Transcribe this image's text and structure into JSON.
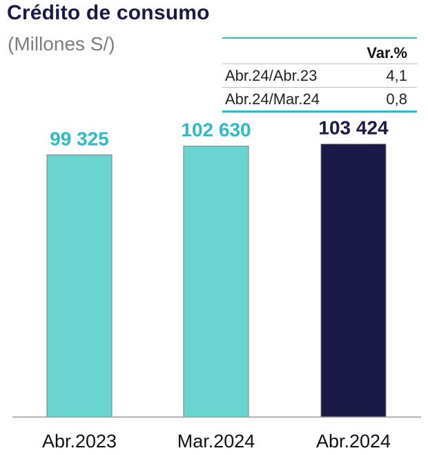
{
  "header": {
    "title": "Crédito de consumo",
    "subtitle": "(Millones S/)"
  },
  "variation_table": {
    "header": "Var.%",
    "rows": [
      {
        "label": "Abr.24/Abr.23",
        "value": "4,1"
      },
      {
        "label": "Abr.24/Mar.24",
        "value": "0,8"
      }
    ]
  },
  "chart_data": {
    "type": "bar",
    "categories": [
      "Abr.2023",
      "Mar.2024",
      "Abr.2024"
    ],
    "values": [
      99325,
      102630,
      103424
    ],
    "value_labels": [
      "99 325",
      "102 630",
      "103 424"
    ],
    "colors": [
      "#6ad5d0",
      "#6ad5d0",
      "#1b1a46"
    ],
    "label_colors": [
      "#2fb9c4",
      "#2fb9c4",
      "#1b1a46"
    ],
    "ylim": [
      0,
      124000
    ],
    "grid": false,
    "legend": "none"
  }
}
